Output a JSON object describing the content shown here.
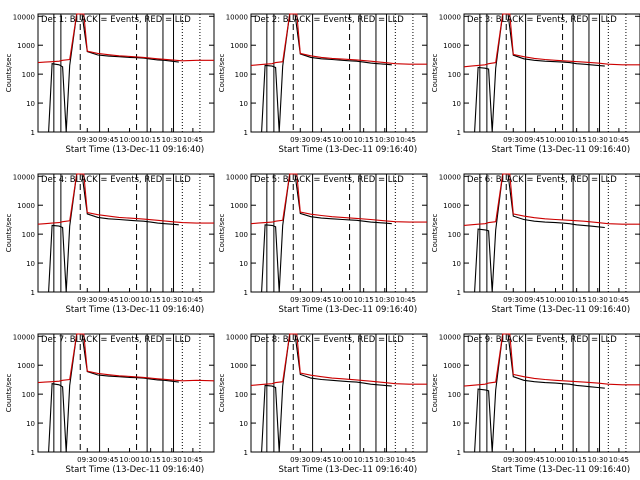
{
  "chart_data": [
    {
      "type": "line",
      "title": "Det 1: BLACK = Events, RED = LLD",
      "xlabel": "Start Time (13-Dec-11 09:16:40)",
      "ylabel": "Counts/sec",
      "xticks": [
        "09:30",
        "09:45",
        "10:00",
        "10:15",
        "10:30",
        "10:45"
      ],
      "yticks": [
        "1",
        "10",
        "100",
        "1000",
        "10000"
      ],
      "yscale": "log",
      "ylim": [
        1,
        12000
      ],
      "xlim": [
        0,
        100
      ],
      "series": [
        {
          "color": "#000000",
          "x": [
            0,
            6,
            8,
            12,
            14,
            16,
            18,
            22,
            25,
            28,
            34,
            40,
            46,
            52,
            56,
            60,
            64,
            68,
            72,
            76,
            80
          ],
          "y": [
            1,
            1,
            230,
            210,
            180,
            1,
            200,
            12000,
            12000,
            600,
            460,
            420,
            400,
            380,
            370,
            360,
            330,
            310,
            300,
            280,
            260
          ]
        },
        {
          "color": "#cc0000",
          "x": [
            0,
            4,
            8,
            12,
            14,
            18,
            22,
            24,
            26,
            28,
            34,
            40,
            46,
            52,
            60,
            68,
            76,
            82,
            90,
            100
          ],
          "y": [
            250,
            260,
            270,
            280,
            300,
            320,
            12000,
            12000,
            12000,
            620,
            520,
            470,
            430,
            410,
            380,
            340,
            310,
            290,
            300,
            300
          ]
        }
      ]
    },
    {
      "type": "line",
      "title": "Det 2: BLACK = Events, RED = LLD",
      "xlabel": "Start Time (13-Dec-11 09:16:40)",
      "ylabel": "Counts/sec",
      "xticks": [
        "09:30",
        "09:45",
        "10:00",
        "10:15",
        "10:30",
        "10:45"
      ],
      "yticks": [
        "1",
        "10",
        "100",
        "1000",
        "10000"
      ],
      "yscale": "log",
      "ylim": [
        1,
        12000
      ],
      "xlim": [
        0,
        100
      ],
      "series": [
        {
          "color": "#000000",
          "x": [
            0,
            6,
            8,
            12,
            14,
            16,
            18,
            22,
            25,
            28,
            34,
            40,
            46,
            52,
            56,
            60,
            64,
            68,
            72,
            76,
            80
          ],
          "y": [
            1,
            1,
            200,
            190,
            170,
            1,
            190,
            12000,
            12000,
            500,
            380,
            340,
            320,
            300,
            290,
            280,
            260,
            240,
            230,
            220,
            210
          ]
        },
        {
          "color": "#cc0000",
          "x": [
            0,
            4,
            8,
            12,
            14,
            18,
            22,
            24,
            26,
            28,
            34,
            40,
            46,
            52,
            60,
            68,
            76,
            82,
            90,
            100
          ],
          "y": [
            200,
            210,
            220,
            230,
            250,
            270,
            12000,
            12000,
            12000,
            520,
            430,
            380,
            350,
            330,
            310,
            280,
            250,
            230,
            220,
            220
          ]
        }
      ]
    },
    {
      "type": "line",
      "title": "Det 3: BLACK = Events, RED = LLD",
      "xlabel": "Start Time (13-Dec-11 09:16:40)",
      "ylabel": "Counts/sec",
      "xticks": [
        "09:30",
        "09:45",
        "10:00",
        "10:15",
        "10:30",
        "10:45"
      ],
      "yticks": [
        "1",
        "10",
        "100",
        "1000",
        "10000"
      ],
      "yscale": "log",
      "ylim": [
        1,
        12000
      ],
      "xlim": [
        0,
        100
      ],
      "series": [
        {
          "color": "#000000",
          "x": [
            0,
            6,
            8,
            12,
            14,
            16,
            18,
            22,
            25,
            28,
            34,
            40,
            46,
            52,
            56,
            60,
            64,
            68,
            72,
            76,
            80
          ],
          "y": [
            1,
            1,
            170,
            160,
            150,
            1,
            160,
            12000,
            12000,
            450,
            340,
            300,
            280,
            270,
            260,
            250,
            230,
            220,
            210,
            200,
            190
          ]
        },
        {
          "color": "#cc0000",
          "x": [
            0,
            4,
            8,
            12,
            14,
            18,
            22,
            24,
            26,
            28,
            34,
            40,
            46,
            52,
            60,
            68,
            76,
            82,
            90,
            100
          ],
          "y": [
            180,
            190,
            200,
            210,
            230,
            250,
            12000,
            12000,
            12000,
            480,
            400,
            350,
            320,
            300,
            280,
            260,
            240,
            220,
            210,
            210
          ]
        }
      ]
    },
    {
      "type": "line",
      "title": "Det 4: BLACK = Events, RED = LLD",
      "xlabel": "Start Time (13-Dec-11 09:16:40)",
      "ylabel": "Counts/sec",
      "xticks": [
        "09:30",
        "09:45",
        "10:00",
        "10:15",
        "10:30",
        "10:45"
      ],
      "yticks": [
        "1",
        "10",
        "100",
        "1000",
        "10000"
      ],
      "yscale": "log",
      "ylim": [
        1,
        12000
      ],
      "xlim": [
        0,
        100
      ],
      "series": [
        {
          "color": "#000000",
          "x": [
            0,
            6,
            8,
            12,
            14,
            16,
            18,
            22,
            25,
            28,
            34,
            40,
            46,
            52,
            56,
            60,
            64,
            68,
            72,
            76,
            80
          ],
          "y": [
            1,
            1,
            200,
            190,
            170,
            1,
            190,
            12000,
            12000,
            500,
            380,
            340,
            320,
            300,
            290,
            280,
            260,
            240,
            230,
            220,
            210
          ]
        },
        {
          "color": "#cc0000",
          "x": [
            0,
            4,
            8,
            12,
            14,
            18,
            22,
            24,
            26,
            28,
            34,
            40,
            46,
            52,
            60,
            68,
            76,
            82,
            90,
            100
          ],
          "y": [
            220,
            230,
            240,
            250,
            270,
            290,
            12000,
            12000,
            12000,
            560,
            470,
            420,
            380,
            360,
            330,
            300,
            270,
            250,
            240,
            240
          ]
        }
      ]
    },
    {
      "type": "line",
      "title": "Det 5: BLACK = Events, RED = LLD",
      "xlabel": "Start Time (13-Dec-11 09:16:40)",
      "ylabel": "Counts/sec",
      "xticks": [
        "09:30",
        "09:45",
        "10:00",
        "10:15",
        "10:30",
        "10:45"
      ],
      "yticks": [
        "1",
        "10",
        "100",
        "1000",
        "10000"
      ],
      "yscale": "log",
      "ylim": [
        1,
        12000
      ],
      "xlim": [
        0,
        100
      ],
      "series": [
        {
          "color": "#000000",
          "x": [
            0,
            6,
            8,
            12,
            14,
            16,
            18,
            22,
            25,
            28,
            34,
            40,
            46,
            52,
            56,
            60,
            64,
            68,
            72,
            76,
            80
          ],
          "y": [
            1,
            1,
            210,
            200,
            180,
            1,
            200,
            12000,
            12000,
            520,
            400,
            360,
            340,
            320,
            310,
            300,
            280,
            260,
            250,
            240,
            230
          ]
        },
        {
          "color": "#cc0000",
          "x": [
            0,
            4,
            8,
            12,
            14,
            18,
            22,
            24,
            26,
            28,
            34,
            40,
            46,
            52,
            60,
            68,
            76,
            82,
            90,
            100
          ],
          "y": [
            230,
            240,
            250,
            260,
            280,
            300,
            12000,
            12000,
            12000,
            580,
            490,
            440,
            400,
            380,
            350,
            320,
            290,
            270,
            260,
            260
          ]
        }
      ]
    },
    {
      "type": "line",
      "title": "Det 6: BLACK = Events, RED = LLD",
      "xlabel": "Start Time (13-Dec-11 09:16:40)",
      "ylabel": "Counts/sec",
      "xticks": [
        "09:30",
        "09:45",
        "10:00",
        "10:15",
        "10:30",
        "10:45"
      ],
      "yticks": [
        "1",
        "10",
        "100",
        "1000",
        "10000"
      ],
      "yscale": "log",
      "ylim": [
        1,
        12000
      ],
      "xlim": [
        0,
        100
      ],
      "series": [
        {
          "color": "#000000",
          "x": [
            0,
            6,
            8,
            12,
            14,
            16,
            18,
            22,
            25,
            28,
            34,
            40,
            46,
            52,
            56,
            60,
            64,
            68,
            72,
            76,
            80
          ],
          "y": [
            1,
            1,
            150,
            140,
            130,
            1,
            140,
            12000,
            12000,
            420,
            320,
            280,
            260,
            250,
            240,
            230,
            210,
            200,
            190,
            180,
            170
          ]
        },
        {
          "color": "#cc0000",
          "x": [
            0,
            4,
            8,
            12,
            14,
            18,
            22,
            24,
            26,
            28,
            34,
            40,
            46,
            52,
            60,
            68,
            76,
            82,
            90,
            100
          ],
          "y": [
            200,
            210,
            220,
            230,
            250,
            270,
            12000,
            12000,
            12000,
            500,
            420,
            370,
            340,
            320,
            300,
            280,
            250,
            230,
            220,
            220
          ]
        }
      ]
    },
    {
      "type": "line",
      "title": "Det 7: BLACK = Events, RED = LLD",
      "xlabel": "Start Time (13-Dec-11 09:16:40)",
      "ylabel": "Counts/sec",
      "xticks": [
        "09:30",
        "09:45",
        "10:00",
        "10:15",
        "10:30",
        "10:45"
      ],
      "yticks": [
        "1",
        "10",
        "100",
        "1000",
        "10000"
      ],
      "yscale": "log",
      "ylim": [
        1,
        12000
      ],
      "xlim": [
        0,
        100
      ],
      "series": [
        {
          "color": "#000000",
          "x": [
            0,
            6,
            8,
            12,
            14,
            16,
            18,
            22,
            25,
            28,
            34,
            40,
            46,
            52,
            56,
            60,
            64,
            68,
            72,
            76,
            80
          ],
          "y": [
            1,
            1,
            230,
            210,
            180,
            1,
            200,
            12000,
            12000,
            600,
            460,
            420,
            400,
            380,
            370,
            360,
            330,
            310,
            300,
            280,
            260
          ]
        },
        {
          "color": "#cc0000",
          "x": [
            0,
            4,
            8,
            12,
            14,
            18,
            22,
            24,
            26,
            28,
            34,
            40,
            46,
            52,
            60,
            68,
            76,
            82,
            90,
            100
          ],
          "y": [
            250,
            260,
            270,
            280,
            300,
            320,
            12000,
            12000,
            12000,
            620,
            520,
            470,
            430,
            410,
            380,
            340,
            310,
            290,
            300,
            290
          ]
        }
      ]
    },
    {
      "type": "line",
      "title": "Det 8: BLACK = Events, RED = LLD",
      "xlabel": "Start Time (13-Dec-11 09:16:40)",
      "ylabel": "Counts/sec",
      "xticks": [
        "09:30",
        "09:45",
        "10:00",
        "10:15",
        "10:30",
        "10:45"
      ],
      "yticks": [
        "1",
        "10",
        "100",
        "1000",
        "10000"
      ],
      "yscale": "log",
      "ylim": [
        1,
        12000
      ],
      "xlim": [
        0,
        100
      ],
      "series": [
        {
          "color": "#000000",
          "x": [
            0,
            6,
            8,
            12,
            14,
            16,
            18,
            22,
            25,
            28,
            34,
            40,
            46,
            52,
            56,
            60,
            64,
            68,
            72,
            76,
            80
          ],
          "y": [
            1,
            1,
            200,
            190,
            170,
            1,
            190,
            12000,
            12000,
            480,
            360,
            320,
            300,
            280,
            270,
            260,
            240,
            220,
            210,
            200,
            190
          ]
        },
        {
          "color": "#cc0000",
          "x": [
            0,
            4,
            8,
            12,
            14,
            18,
            22,
            24,
            26,
            28,
            34,
            40,
            46,
            52,
            60,
            68,
            76,
            82,
            90,
            100
          ],
          "y": [
            200,
            210,
            220,
            230,
            250,
            270,
            12000,
            12000,
            12000,
            540,
            450,
            400,
            360,
            340,
            310,
            280,
            250,
            230,
            220,
            220
          ]
        }
      ]
    },
    {
      "type": "line",
      "title": "Det 9: BLACK = Events, RED = LLD",
      "xlabel": "Start Time (13-Dec-11 09:16:40)",
      "ylabel": "Counts/sec",
      "xticks": [
        "09:30",
        "09:45",
        "10:00",
        "10:15",
        "10:30",
        "10:45"
      ],
      "yticks": [
        "1",
        "10",
        "100",
        "1000",
        "10000"
      ],
      "yscale": "log",
      "ylim": [
        1,
        12000
      ],
      "xlim": [
        0,
        100
      ],
      "series": [
        {
          "color": "#000000",
          "x": [
            0,
            6,
            8,
            12,
            14,
            16,
            18,
            22,
            25,
            28,
            34,
            40,
            46,
            52,
            56,
            60,
            64,
            68,
            72,
            76,
            80
          ],
          "y": [
            1,
            1,
            150,
            140,
            130,
            1,
            140,
            12000,
            12000,
            400,
            300,
            270,
            250,
            240,
            230,
            220,
            200,
            190,
            180,
            170,
            160
          ]
        },
        {
          "color": "#cc0000",
          "x": [
            0,
            4,
            8,
            12,
            14,
            18,
            22,
            24,
            26,
            28,
            34,
            40,
            46,
            52,
            60,
            68,
            76,
            82,
            90,
            100
          ],
          "y": [
            190,
            200,
            210,
            220,
            240,
            260,
            12000,
            12000,
            12000,
            480,
            400,
            350,
            320,
            300,
            280,
            260,
            240,
            220,
            210,
            210
          ]
        }
      ]
    }
  ]
}
